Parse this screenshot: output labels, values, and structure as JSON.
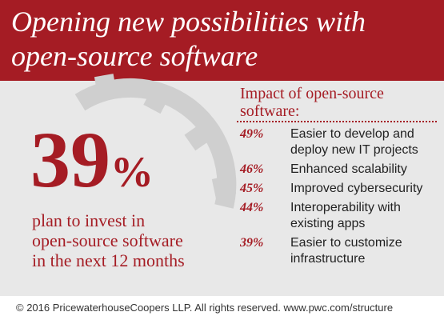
{
  "title_line1": "Opening new possibilities with",
  "title_line2": "open-source software",
  "highlight": {
    "value": "39",
    "unit": "%",
    "caption_line1": "plan to invest in",
    "caption_line2": "open-source software",
    "caption_line3": "in the next 12 months"
  },
  "impact_title_line1": "Impact of open-source",
  "impact_title_line2": "software:",
  "chart_data": {
    "type": "table",
    "title": "Impact of open-source software:",
    "rows": [
      {
        "value": 49,
        "label": "Easier to develop and deploy new IT projects"
      },
      {
        "value": 46,
        "label": "Enhanced scalability"
      },
      {
        "value": 45,
        "label": "Improved cybersecurity"
      },
      {
        "value": 44,
        "label": "Interoperability with existing apps"
      },
      {
        "value": 39,
        "label": "Easier to customize infrastructure"
      }
    ]
  },
  "items": [
    {
      "pct": "49%",
      "line1": "Easier to develop and",
      "line2": "deploy new IT projects"
    },
    {
      "pct": "46%",
      "line1": "Enhanced scalability",
      "line2": ""
    },
    {
      "pct": "45%",
      "line1": "Improved cybersecurity",
      "line2": ""
    },
    {
      "pct": "44%",
      "line1": "Interoperability with",
      "line2": "existing apps"
    },
    {
      "pct": "39%",
      "line1": "Easier to customize",
      "line2": "infrastructure"
    }
  ],
  "footer": "© 2016 PricewaterhouseCoopers LLP.  All rights reserved. www.pwc.com/structure",
  "colors": {
    "accent": "#a51c24",
    "background": "#e8e8e8",
    "gear": "#cfcfcf"
  }
}
